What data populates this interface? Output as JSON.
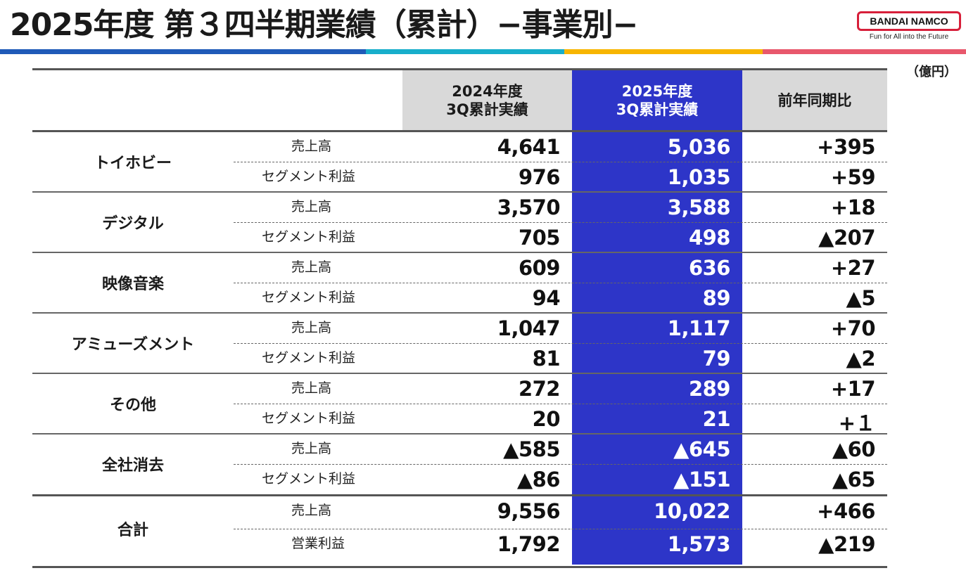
{
  "title": "2025年度 第３四半期業績（累計）−事業別−",
  "logo": {
    "name": "BANDAI NAMCO",
    "tagline": "Fun for All into the Future"
  },
  "unit": "（億円）",
  "colors": {
    "accent_blue": "#2d35c8",
    "header_grey": "#d9d9d9",
    "stripe": [
      "#1f5ab8",
      "#17aecb",
      "#f7b500",
      "#e8586c"
    ]
  },
  "table": {
    "headers": {
      "prev": [
        "2024年度",
        "3Q累計実績"
      ],
      "curr": [
        "2025年度",
        "3Q累計実績"
      ],
      "diff": "前年同期比"
    },
    "groups": [
      {
        "name": "トイホビー",
        "rows": [
          {
            "label": "売上高",
            "prev": "4,641",
            "curr": "5,036",
            "diff": "+395"
          },
          {
            "label": "セグメント利益",
            "prev": "976",
            "curr": "1,035",
            "diff": "+59"
          }
        ]
      },
      {
        "name": "デジタル",
        "rows": [
          {
            "label": "売上高",
            "prev": "3,570",
            "curr": "3,588",
            "diff": "+18"
          },
          {
            "label": "セグメント利益",
            "prev": "705",
            "curr": "498",
            "diff": "▲207"
          }
        ]
      },
      {
        "name": "映像音楽",
        "rows": [
          {
            "label": "売上高",
            "prev": "609",
            "curr": "636",
            "diff": "+27"
          },
          {
            "label": "セグメント利益",
            "prev": "94",
            "curr": "89",
            "diff": "▲5"
          }
        ]
      },
      {
        "name": "アミューズメント",
        "rows": [
          {
            "label": "売上高",
            "prev": "1,047",
            "curr": "1,117",
            "diff": "+70"
          },
          {
            "label": "セグメント利益",
            "prev": "81",
            "curr": "79",
            "diff": "▲2"
          }
        ]
      },
      {
        "name": "その他",
        "rows": [
          {
            "label": "売上高",
            "prev": "272",
            "curr": "289",
            "diff": "+17"
          },
          {
            "label": "セグメント利益",
            "prev": "20",
            "curr": "21",
            "diff": "+１"
          }
        ]
      },
      {
        "name": "全社消去",
        "rows": [
          {
            "label": "売上高",
            "prev": "▲585",
            "curr": "▲645",
            "diff": "▲60"
          },
          {
            "label": "セグメント利益",
            "prev": "▲86",
            "curr": "▲151",
            "diff": "▲65"
          }
        ]
      },
      {
        "name": "合計",
        "rows": [
          {
            "label": "売上高",
            "prev": "9,556",
            "curr": "10,022",
            "diff": "+466"
          },
          {
            "label": "営業利益",
            "prev": "1,792",
            "curr": "1,573",
            "diff": "▲219"
          }
        ]
      }
    ]
  }
}
